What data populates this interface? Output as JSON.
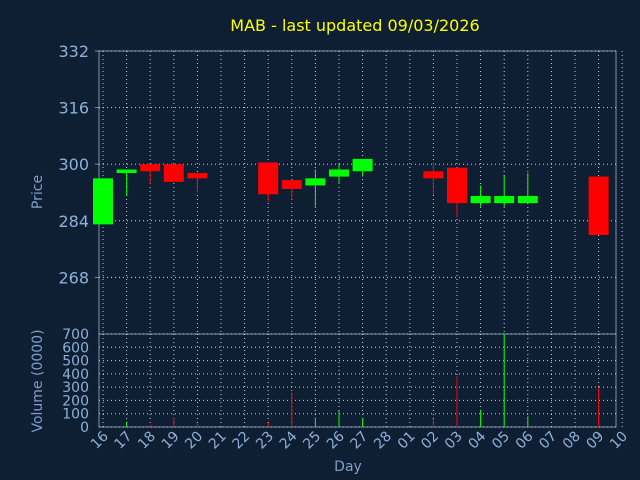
{
  "chart_data": [
    {
      "type": "candlestick",
      "title": "MAB - last updated 09/03/2026",
      "ylabel": "Price",
      "ylim": [
        252,
        332
      ],
      "yticks": [
        "332",
        "316",
        "300",
        "284",
        "268"
      ],
      "grid": true,
      "up_color": "#00ff00",
      "down_color": "#ff0000",
      "candles": [
        {
          "day": "16",
          "open": 283,
          "close": 296,
          "high": 296,
          "low": 283
        },
        {
          "day": "17",
          "open": 297.5,
          "close": 298.5,
          "high": 298.5,
          "low": 291
        },
        {
          "day": "18",
          "open": 300,
          "close": 298,
          "high": 300,
          "low": 294.5
        },
        {
          "day": "19",
          "open": 300,
          "close": 295,
          "high": 300,
          "low": 295
        },
        {
          "day": "20",
          "open": 297.5,
          "close": 296,
          "high": 297.5,
          "low": 292
        },
        {
          "day": "21",
          "open": null,
          "close": null,
          "high": null,
          "low": null
        },
        {
          "day": "22",
          "open": null,
          "close": null,
          "high": null,
          "low": null
        },
        {
          "day": "23",
          "open": 300.5,
          "close": 291.5,
          "high": 300.5,
          "low": 289.5
        },
        {
          "day": "24",
          "open": 295.5,
          "close": 293,
          "high": 295.5,
          "low": 290
        },
        {
          "day": "25",
          "open": 294,
          "close": 296,
          "high": 298.5,
          "low": 288
        },
        {
          "day": "26",
          "open": 296.5,
          "close": 298.5,
          "high": 300,
          "low": 294.5
        },
        {
          "day": "27",
          "open": 298,
          "close": 301.5,
          "high": 301.5,
          "low": 296.5
        },
        {
          "day": "28",
          "open": null,
          "close": null,
          "high": null,
          "low": null
        },
        {
          "day": "01",
          "open": null,
          "close": null,
          "high": null,
          "low": null
        },
        {
          "day": "02",
          "open": 298,
          "close": 296,
          "high": 300.5,
          "low": 291.5
        },
        {
          "day": "03",
          "open": 299,
          "close": 289,
          "high": 299,
          "low": 285
        },
        {
          "day": "04",
          "open": 289,
          "close": 291,
          "high": 294,
          "low": 288
        },
        {
          "day": "05",
          "open": 289,
          "close": 291,
          "high": 297,
          "low": 288
        },
        {
          "day": "06",
          "open": 289,
          "close": 291,
          "high": 297.5,
          "low": 289
        },
        {
          "day": "07",
          "open": null,
          "close": null,
          "high": null,
          "low": null
        },
        {
          "day": "08",
          "open": null,
          "close": null,
          "high": null,
          "low": null
        },
        {
          "day": "09",
          "open": 296.5,
          "close": 280,
          "high": 296.5,
          "low": 280
        },
        {
          "day": "10",
          "open": null,
          "close": null,
          "high": null,
          "low": null
        }
      ]
    },
    {
      "type": "bar",
      "ylabel": "Volume (0000)",
      "xlabel": "Day",
      "ylim": [
        0,
        700
      ],
      "yticks": [
        "700",
        "600",
        "500",
        "400",
        "300",
        "200",
        "100",
        "0"
      ],
      "grid": true,
      "categories": [
        "16",
        "17",
        "18",
        "19",
        "20",
        "21",
        "22",
        "23",
        "24",
        "25",
        "26",
        "27",
        "28",
        "01",
        "02",
        "03",
        "04",
        "05",
        "06",
        "07",
        "08",
        "09",
        "10"
      ],
      "values": [
        0,
        40,
        15,
        70,
        25,
        0,
        0,
        30,
        260,
        70,
        120,
        70,
        0,
        0,
        60,
        380,
        130,
        700,
        80,
        0,
        0,
        300,
        0
      ],
      "bar_colors": [
        "up",
        "up",
        "down",
        "down",
        "down",
        "none",
        "none",
        "down",
        "down",
        "up",
        "up",
        "up",
        "none",
        "none",
        "down",
        "down",
        "up",
        "up",
        "up",
        "none",
        "none",
        "down",
        "none"
      ]
    }
  ]
}
